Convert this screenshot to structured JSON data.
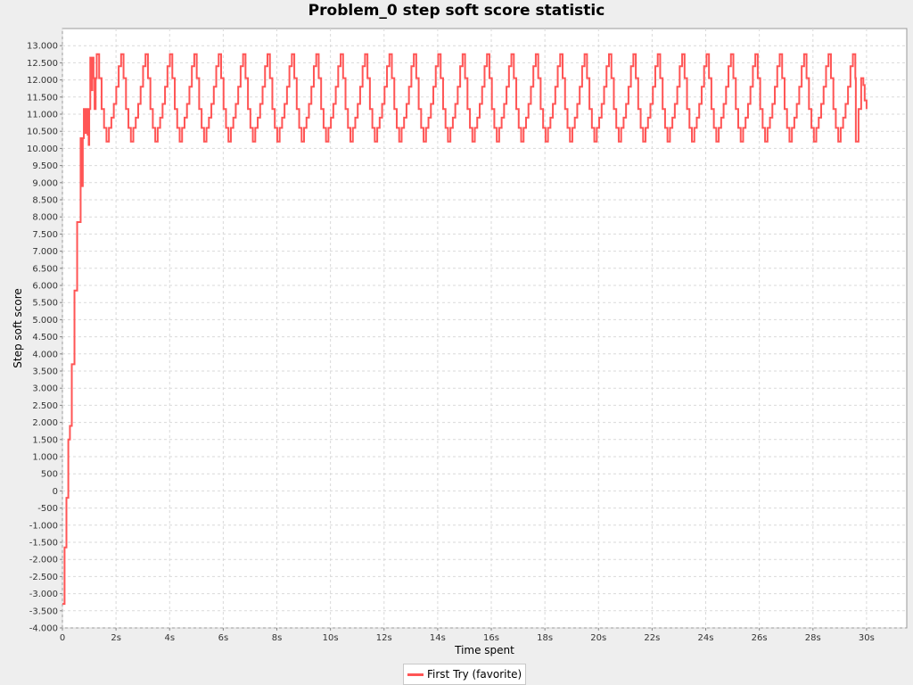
{
  "chart_data": {
    "type": "line",
    "title": "Problem_0 step soft score statistic",
    "xlabel": "Time spent",
    "ylabel": "Step soft score",
    "xlim": [
      0,
      31.5
    ],
    "ylim": [
      -4000,
      13500
    ],
    "x_ticks": [
      {
        "value": 0,
        "label": "0"
      },
      {
        "value": 2,
        "label": "2s"
      },
      {
        "value": 4,
        "label": "4s"
      },
      {
        "value": 6,
        "label": "6s"
      },
      {
        "value": 8,
        "label": "8s"
      },
      {
        "value": 10,
        "label": "10s"
      },
      {
        "value": 12,
        "label": "12s"
      },
      {
        "value": 14,
        "label": "14s"
      },
      {
        "value": 16,
        "label": "16s"
      },
      {
        "value": 18,
        "label": "18s"
      },
      {
        "value": 20,
        "label": "20s"
      },
      {
        "value": 22,
        "label": "22s"
      },
      {
        "value": 24,
        "label": "24s"
      },
      {
        "value": 26,
        "label": "26s"
      },
      {
        "value": 28,
        "label": "28s"
      },
      {
        "value": 30,
        "label": "30s"
      }
    ],
    "y_ticks": [
      {
        "value": 13000,
        "label": "13.000"
      },
      {
        "value": 12500,
        "label": "12.500"
      },
      {
        "value": 12000,
        "label": "12.000"
      },
      {
        "value": 11500,
        "label": "11.500"
      },
      {
        "value": 11000,
        "label": "11.000"
      },
      {
        "value": 10500,
        "label": "10.500"
      },
      {
        "value": 10000,
        "label": "10.000"
      },
      {
        "value": 9500,
        "label": "9.500"
      },
      {
        "value": 9000,
        "label": "9.000"
      },
      {
        "value": 8500,
        "label": "8.500"
      },
      {
        "value": 8000,
        "label": "8.000"
      },
      {
        "value": 7500,
        "label": "7.500"
      },
      {
        "value": 7000,
        "label": "7.000"
      },
      {
        "value": 6500,
        "label": "6.500"
      },
      {
        "value": 6000,
        "label": "6.000"
      },
      {
        "value": 5500,
        "label": "5.500"
      },
      {
        "value": 5000,
        "label": "5.000"
      },
      {
        "value": 4500,
        "label": "4.500"
      },
      {
        "value": 4000,
        "label": "4.000"
      },
      {
        "value": 3500,
        "label": "3.500"
      },
      {
        "value": 3000,
        "label": "3.000"
      },
      {
        "value": 2500,
        "label": "2.500"
      },
      {
        "value": 2000,
        "label": "2.000"
      },
      {
        "value": 1500,
        "label": "1.500"
      },
      {
        "value": 1000,
        "label": "1.000"
      },
      {
        "value": 500,
        "label": "500"
      },
      {
        "value": 0,
        "label": "0"
      },
      {
        "value": -500,
        "label": "-500"
      },
      {
        "value": -1000,
        "label": "-1.000"
      },
      {
        "value": -1500,
        "label": "-1.500"
      },
      {
        "value": -2000,
        "label": "-2.000"
      },
      {
        "value": -2500,
        "label": "-2.500"
      },
      {
        "value": -3000,
        "label": "-3.000"
      },
      {
        "value": -3500,
        "label": "-3.500"
      },
      {
        "value": -4000,
        "label": "-4.000"
      }
    ],
    "grid": true,
    "legend_position": "bottom-center",
    "series": [
      {
        "name": "First Try (favorite)",
        "color": "#ff5555",
        "step": true,
        "initial_points": [
          [
            0.0,
            -3300
          ],
          [
            0.08,
            -1650
          ],
          [
            0.15,
            -200
          ],
          [
            0.22,
            1500
          ],
          [
            0.28,
            1900
          ],
          [
            0.35,
            3700
          ],
          [
            0.45,
            5850
          ],
          [
            0.55,
            7850
          ],
          [
            0.68,
            10300
          ],
          [
            0.72,
            8900
          ],
          [
            0.76,
            10300
          ],
          [
            0.8,
            11150
          ],
          [
            0.86,
            10450
          ],
          [
            0.9,
            11150
          ],
          [
            0.94,
            10400
          ],
          [
            0.98,
            10100
          ],
          [
            1.0,
            11150
          ],
          [
            1.04,
            12650
          ],
          [
            1.08,
            11700
          ],
          [
            1.12,
            12650
          ],
          [
            1.16,
            12050
          ],
          [
            1.2,
            11150
          ],
          [
            1.24,
            12050
          ],
          [
            1.28,
            12650
          ]
        ],
        "periodic_pattern": {
          "start": 1.28,
          "end": 29.6,
          "period_s": 0.91,
          "levels": [
            12750,
            12050,
            11150,
            10600,
            10200,
            10600,
            10900,
            11300,
            11800,
            12400
          ]
        },
        "final_points": [
          [
            29.6,
            10200
          ],
          [
            29.7,
            11150
          ],
          [
            29.8,
            12050
          ],
          [
            29.88,
            11850
          ],
          [
            29.93,
            11400
          ],
          [
            30.0,
            11150
          ]
        ]
      }
    ]
  }
}
